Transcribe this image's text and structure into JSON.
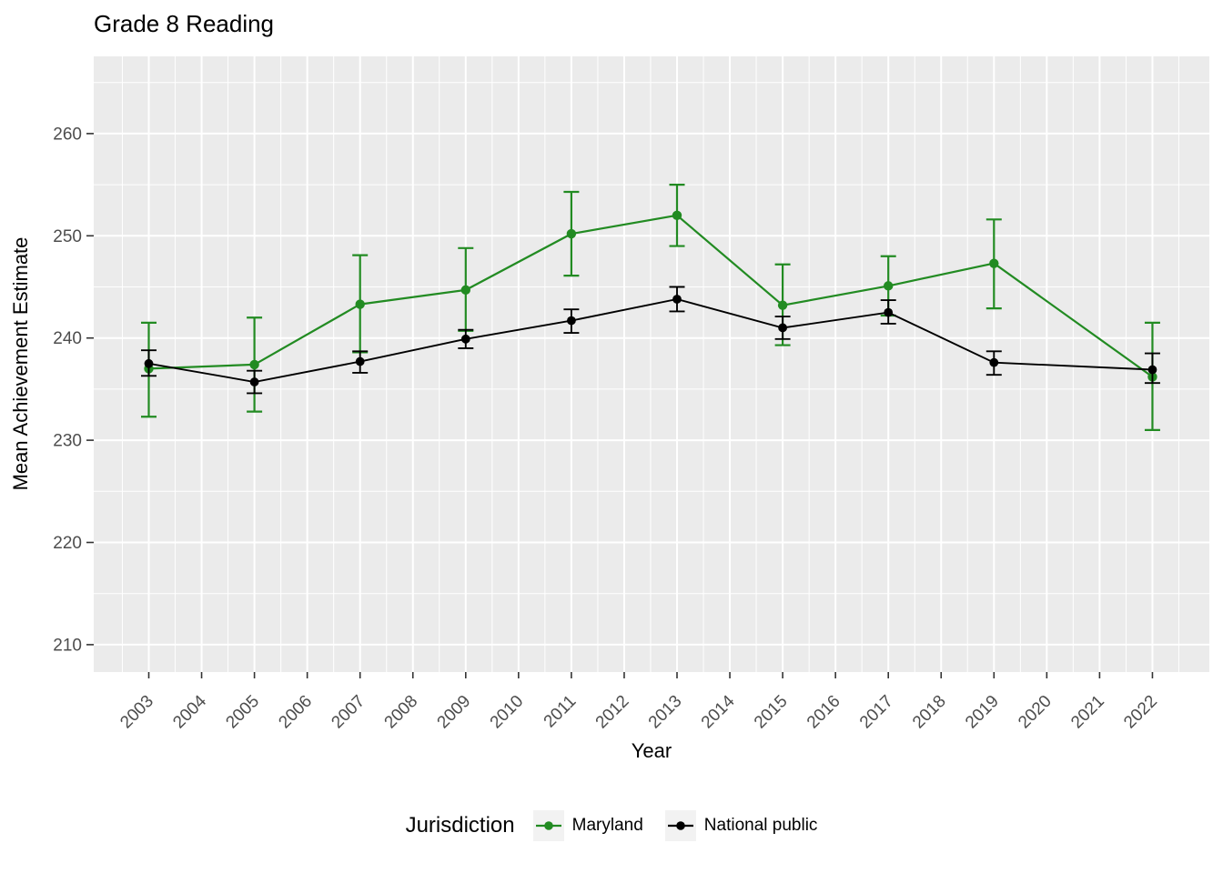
{
  "title": "Grade 8 Reading",
  "x_axis": {
    "label": "Year",
    "ticks": [
      "2003",
      "2004",
      "2005",
      "2006",
      "2007",
      "2008",
      "2009",
      "2010",
      "2011",
      "2012",
      "2013",
      "2014",
      "2015",
      "2016",
      "2017",
      "2018",
      "2019",
      "2020",
      "2021",
      "2022"
    ]
  },
  "y_axis": {
    "label": "Mean Achievement Estimate",
    "ticks": [
      "210",
      "220",
      "230",
      "240",
      "250",
      "260"
    ]
  },
  "legend": {
    "title": "Jurisdiction",
    "entries": [
      {
        "label": "Maryland",
        "color": "#228B22"
      },
      {
        "label": "National public",
        "color": "#000000"
      }
    ]
  },
  "colors": {
    "panel_bg": "#EBEBEB",
    "grid": "#FFFFFF",
    "axis_text": "#4D4D4D",
    "tick_mark": "#333333",
    "legend_key_bg": "#F2F2F2",
    "maryland": "#228B22",
    "national_public": "#000000"
  },
  "chart_data": {
    "type": "line",
    "title": "Grade 8 Reading",
    "xlabel": "Year",
    "ylabel": "Mean Achievement Estimate",
    "x_tick_years": [
      2003,
      2004,
      2005,
      2006,
      2007,
      2008,
      2009,
      2010,
      2011,
      2012,
      2013,
      2014,
      2015,
      2016,
      2017,
      2018,
      2019,
      2020,
      2021,
      2022
    ],
    "y_tick_values": [
      210,
      220,
      230,
      240,
      250,
      260
    ],
    "xlim": [
      2002.05,
      2022.95
    ],
    "ylim": [
      207.3,
      267.6
    ],
    "grid": "on",
    "legend_position": "bottom",
    "error_bars": true,
    "series": [
      {
        "name": "Maryland",
        "color": "#228B22",
        "points": [
          {
            "x": 2003,
            "y": 237.0,
            "lo": 232.3,
            "hi": 241.5
          },
          {
            "x": 2005,
            "y": 237.4,
            "lo": 232.8,
            "hi": 242.0
          },
          {
            "x": 2007,
            "y": 243.3,
            "lo": 238.6,
            "hi": 248.1
          },
          {
            "x": 2009,
            "y": 244.7,
            "lo": 240.7,
            "hi": 248.8
          },
          {
            "x": 2011,
            "y": 250.2,
            "lo": 246.1,
            "hi": 254.3
          },
          {
            "x": 2013,
            "y": 252.0,
            "lo": 249.0,
            "hi": 255.0
          },
          {
            "x": 2015,
            "y": 243.2,
            "lo": 239.3,
            "hi": 247.2
          },
          {
            "x": 2017,
            "y": 245.1,
            "lo": 242.2,
            "hi": 248.0
          },
          {
            "x": 2019,
            "y": 247.3,
            "lo": 242.9,
            "hi": 251.6
          },
          {
            "x": 2022,
            "y": 236.2,
            "lo": 231.0,
            "hi": 241.5
          }
        ]
      },
      {
        "name": "National public",
        "color": "#000000",
        "points": [
          {
            "x": 2003,
            "y": 237.5,
            "lo": 236.3,
            "hi": 238.8
          },
          {
            "x": 2005,
            "y": 235.7,
            "lo": 234.6,
            "hi": 236.8
          },
          {
            "x": 2007,
            "y": 237.7,
            "lo": 236.6,
            "hi": 238.7
          },
          {
            "x": 2009,
            "y": 239.9,
            "lo": 239.0,
            "hi": 240.8
          },
          {
            "x": 2011,
            "y": 241.7,
            "lo": 240.5,
            "hi": 242.8
          },
          {
            "x": 2013,
            "y": 243.8,
            "lo": 242.6,
            "hi": 245.0
          },
          {
            "x": 2015,
            "y": 241.0,
            "lo": 239.9,
            "hi": 242.1
          },
          {
            "x": 2017,
            "y": 242.5,
            "lo": 241.4,
            "hi": 243.7
          },
          {
            "x": 2019,
            "y": 237.6,
            "lo": 236.4,
            "hi": 238.7
          },
          {
            "x": 2022,
            "y": 236.9,
            "lo": 235.6,
            "hi": 238.5
          }
        ]
      }
    ]
  }
}
